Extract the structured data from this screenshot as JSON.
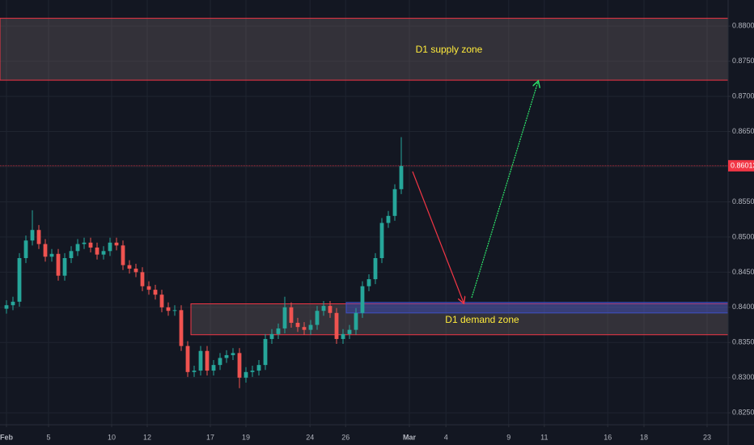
{
  "chart_data": {
    "type": "candlestick",
    "x": [
      0,
      1,
      2,
      3,
      4,
      5,
      6,
      7,
      8,
      9,
      10,
      11,
      12,
      13,
      14,
      15,
      16,
      17,
      18,
      19,
      20,
      21,
      22,
      23,
      24,
      25,
      26,
      27,
      28,
      29,
      30,
      31,
      32,
      33,
      34,
      35,
      36,
      37,
      38,
      39,
      40,
      41,
      42,
      43,
      44,
      45,
      46,
      47,
      48,
      49,
      50,
      51,
      52,
      53,
      54,
      55,
      56,
      57,
      58,
      59,
      60,
      61
    ],
    "open": [
      0.8398,
      0.8403,
      0.8408,
      0.847,
      0.8495,
      0.851,
      0.849,
      0.8472,
      0.8476,
      0.8445,
      0.847,
      0.848,
      0.849,
      0.8492,
      0.8485,
      0.8475,
      0.848,
      0.8492,
      0.8488,
      0.846,
      0.8455,
      0.845,
      0.843,
      0.8425,
      0.8418,
      0.84,
      0.8395,
      0.8396,
      0.8345,
      0.8308,
      0.831,
      0.8338,
      0.831,
      0.8318,
      0.8328,
      0.8332,
      0.8335,
      0.83,
      0.8308,
      0.831,
      0.8318,
      0.8355,
      0.8362,
      0.837,
      0.84,
      0.8378,
      0.8372,
      0.8368,
      0.8375,
      0.8395,
      0.8402,
      0.8392,
      0.8355,
      0.8362,
      0.8368,
      0.8392,
      0.843,
      0.844,
      0.847,
      0.852,
      0.853,
      0.8568
    ],
    "high": [
      0.841,
      0.8415,
      0.8477,
      0.8502,
      0.8538,
      0.8517,
      0.8497,
      0.8483,
      0.8483,
      0.8477,
      0.8487,
      0.8497,
      0.8499,
      0.8499,
      0.8492,
      0.8487,
      0.8499,
      0.8499,
      0.8495,
      0.8467,
      0.8462,
      0.8457,
      0.8437,
      0.8432,
      0.8425,
      0.8407,
      0.8403,
      0.8403,
      0.8352,
      0.8317,
      0.8345,
      0.8345,
      0.8325,
      0.8335,
      0.8339,
      0.8342,
      0.8342,
      0.8315,
      0.8317,
      0.8325,
      0.8362,
      0.8369,
      0.8377,
      0.8415,
      0.8407,
      0.8385,
      0.8379,
      0.8382,
      0.8402,
      0.8409,
      0.8409,
      0.8399,
      0.8369,
      0.8375,
      0.8399,
      0.8437,
      0.8447,
      0.8477,
      0.8527,
      0.8537,
      0.8575,
      0.8642
    ],
    "low": [
      0.8391,
      0.8396,
      0.8401,
      0.8463,
      0.8488,
      0.8483,
      0.8465,
      0.8465,
      0.8438,
      0.8438,
      0.8463,
      0.8473,
      0.8483,
      0.8478,
      0.8468,
      0.8468,
      0.8473,
      0.8481,
      0.8453,
      0.8448,
      0.8443,
      0.8423,
      0.8418,
      0.8411,
      0.8393,
      0.8388,
      0.8388,
      0.8338,
      0.8301,
      0.8301,
      0.8303,
      0.8303,
      0.8303,
      0.8311,
      0.8321,
      0.8325,
      0.8285,
      0.8293,
      0.8301,
      0.8303,
      0.8311,
      0.8348,
      0.8355,
      0.8363,
      0.8371,
      0.8365,
      0.8361,
      0.8361,
      0.8368,
      0.8388,
      0.8385,
      0.8348,
      0.8348,
      0.8355,
      0.8361,
      0.8385,
      0.8423,
      0.8433,
      0.8463,
      0.8513,
      0.8523,
      0.8561
    ],
    "close": [
      0.8403,
      0.8408,
      0.847,
      0.8495,
      0.851,
      0.849,
      0.8472,
      0.8476,
      0.8445,
      0.847,
      0.848,
      0.849,
      0.8492,
      0.8485,
      0.8475,
      0.848,
      0.8492,
      0.8488,
      0.846,
      0.8455,
      0.845,
      0.843,
      0.8425,
      0.8418,
      0.84,
      0.8395,
      0.8396,
      0.8345,
      0.8308,
      0.831,
      0.8338,
      0.831,
      0.8318,
      0.8328,
      0.8332,
      0.8335,
      0.83,
      0.8308,
      0.831,
      0.8318,
      0.8355,
      0.8362,
      0.837,
      0.84,
      0.8378,
      0.8372,
      0.8368,
      0.8375,
      0.8395,
      0.8402,
      0.8392,
      0.8355,
      0.8362,
      0.8368,
      0.8392,
      0.843,
      0.844,
      0.847,
      0.852,
      0.853,
      0.8568,
      0.8601
    ],
    "up_color": "#26a69a",
    "down_color": "#ef5350",
    "xlim": [
      -1,
      111.5
    ],
    "xticks": [
      {
        "value": 0,
        "label": "Feb"
      },
      {
        "value": 6.5,
        "label": "5"
      },
      {
        "value": 16.25,
        "label": "10"
      },
      {
        "value": 21.75,
        "label": "12"
      },
      {
        "value": 31.5,
        "label": "17"
      },
      {
        "value": 37,
        "label": "19"
      },
      {
        "value": 46.9,
        "label": "24"
      },
      {
        "value": 52.4,
        "label": "26"
      },
      {
        "value": 62.25,
        "label": "Mar"
      },
      {
        "value": 67.9,
        "label": "4"
      },
      {
        "value": 77.6,
        "label": "9"
      },
      {
        "value": 83.1,
        "label": "11"
      },
      {
        "value": 92.9,
        "label": "16"
      },
      {
        "value": 98.5,
        "label": "18"
      },
      {
        "value": 108.25,
        "label": "23"
      }
    ],
    "ylim": [
      0.8233,
      0.8837
    ],
    "yticks": [
      {
        "value": 0.825,
        "label": "0.82500"
      },
      {
        "value": 0.83,
        "label": "0.83000"
      },
      {
        "value": 0.835,
        "label": "0.83500"
      },
      {
        "value": 0.84,
        "label": "0.84000"
      },
      {
        "value": 0.845,
        "label": "0.84500"
      },
      {
        "value": 0.85,
        "label": "0.85000"
      },
      {
        "value": 0.855,
        "label": "0.85500"
      },
      {
        "value": 0.86,
        "label": "0.86000"
      },
      {
        "value": 0.865,
        "label": "0.86500"
      },
      {
        "value": 0.87,
        "label": "0.87000"
      },
      {
        "value": 0.875,
        "label": "0.87500"
      },
      {
        "value": 0.88,
        "label": "0.88000"
      }
    ],
    "grid": true,
    "last_price": {
      "value": 0.86013,
      "label": "0.86013"
    },
    "zones": [
      {
        "label": "D1 supply zone",
        "top": 0.8811,
        "bottom": 0.8723,
        "start": -1,
        "color": "#f23645"
      },
      {
        "label": "D1 demand zone",
        "top": 0.8405,
        "bottom": 0.8361,
        "start": 28.5,
        "color": "#f23645"
      },
      {
        "top": 0.8407,
        "bottom": 0.8392,
        "start": 52.5,
        "color": "#3d4fc4"
      }
    ]
  }
}
